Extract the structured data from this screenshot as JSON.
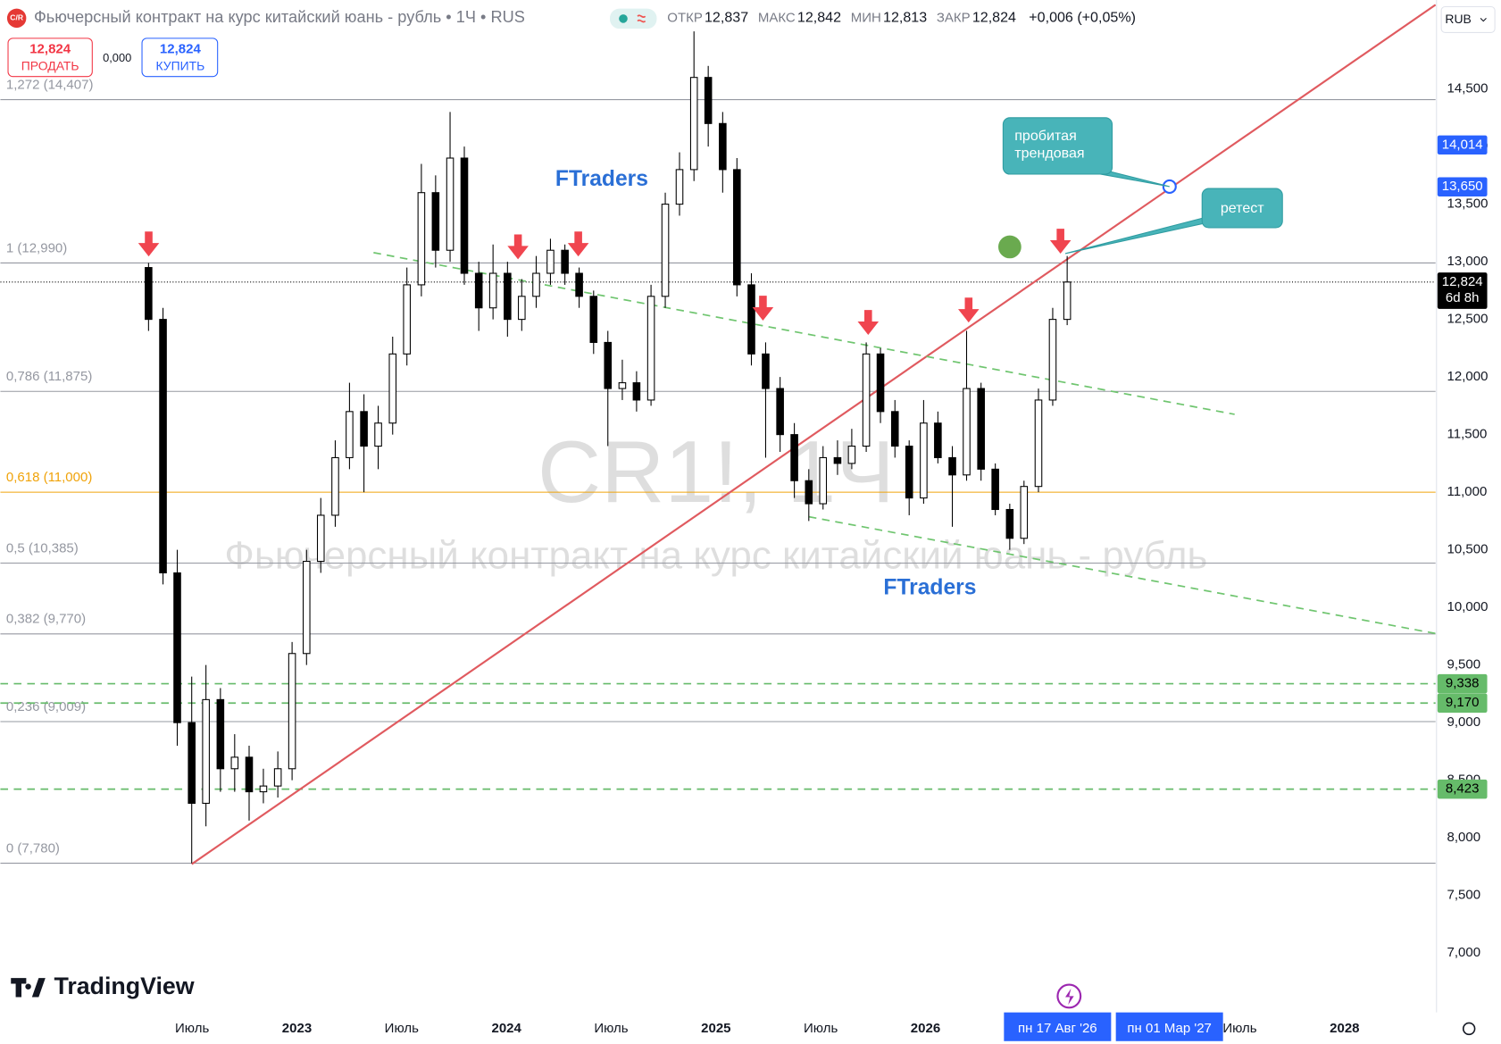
{
  "chart_data": {
    "type": "candlestick",
    "title": "Фьючерсный контракт на курс китайский юань - рубль • 1Ч • RUS",
    "symbol_icon": "C/R",
    "ohlc_legend": [
      {
        "key": "ОТКР",
        "value": "12,837"
      },
      {
        "key": "МАКС",
        "value": "12,842"
      },
      {
        "key": "МИН",
        "value": "12,813"
      },
      {
        "key": "ЗАКР",
        "value": "12,824"
      }
    ],
    "change": "+0,006 (+0,05%)",
    "sell": {
      "price": "12,824",
      "label": "ПРОДАТЬ"
    },
    "spread": "0,000",
    "buy": {
      "price": "12,824",
      "label": "КУПИТЬ"
    },
    "currency": "RUB",
    "watermark": {
      "symbol": "CR1!, 1Ч",
      "description": "Фьючерсный контракт на курс китайский юань - рубль"
    },
    "annotations": {
      "brand_top": "FTraders",
      "brand_bottom": "FTraders",
      "broken_trend": "пробитая трендовая",
      "retest": "ретест"
    },
    "logo": "TradingView",
    "xlim": [
      2021.585,
      2028.434
    ],
    "ylim": [
      6.485,
      15.272
    ],
    "grid": false,
    "up_color": "#ffffff",
    "down_color": "#000000",
    "xticks": [
      {
        "value": 2022.5,
        "label": "Июль"
      },
      2023,
      {
        "value": 2023.5,
        "label": "Июль"
      },
      2024,
      {
        "value": 2024.5,
        "label": "Июль"
      },
      2025,
      {
        "value": 2025.5,
        "label": "Июль"
      },
      2026,
      {
        "value": 2027.5,
        "label": "Июль"
      },
      2028
    ],
    "yticks": [
      {
        "value": 7,
        "label": "7,000"
      },
      {
        "value": 7.5,
        "label": "7,500"
      },
      {
        "value": 8,
        "label": "8,000"
      },
      {
        "value": 8.5,
        "label": "8,500"
      },
      {
        "value": 9,
        "label": "9,000"
      },
      {
        "value": 9.5,
        "label": "9,500"
      },
      {
        "value": 10,
        "label": "10,000"
      },
      {
        "value": 10.5,
        "label": "10,500"
      },
      {
        "value": 11,
        "label": "11,000"
      },
      {
        "value": 11.5,
        "label": "11,500"
      },
      {
        "value": 12,
        "label": "12,000"
      },
      {
        "value": 12.5,
        "label": "12,500"
      },
      {
        "value": 13,
        "label": "13,000"
      },
      {
        "value": 13.5,
        "label": "13,500"
      },
      {
        "value": 14,
        "label": "14,000"
      },
      {
        "value": 14.5,
        "label": "14,500"
      }
    ],
    "fib_levels": [
      {
        "value": 14.407,
        "label": "1,272 (14,407)",
        "color": "#9598a1"
      },
      {
        "value": 12.99,
        "label": "1 (12,990)",
        "color": "#9598a1"
      },
      {
        "value": 11.875,
        "label": "0,786 (11,875)",
        "color": "#9598a1"
      },
      {
        "value": 11,
        "label": "0,618 (11,000)",
        "color": "#f0a30a"
      },
      {
        "value": 10.385,
        "label": "0,5 (10,385)",
        "color": "#9598a1"
      },
      {
        "value": 9.77,
        "label": "0,382 (9,770)",
        "color": "#9598a1"
      },
      {
        "value": 9.009,
        "label": "0,236 (9,009)",
        "color": "#9598a1"
      },
      {
        "value": 7.78,
        "label": "0 (7,780)",
        "color": "#9598a1"
      }
    ],
    "price_tags": [
      {
        "value": 14.014,
        "label": "14,014",
        "color": "#2962ff",
        "text_color": "#ffffff"
      },
      {
        "value": 13.65,
        "label": "13,650",
        "color": "#2962ff",
        "text_color": "#ffffff"
      },
      {
        "value": 12.824,
        "label": "12,824",
        "sublabel": "6d 8h",
        "color": "#000000",
        "text_color": "#ffffff",
        "line": "dotted"
      },
      {
        "value": 9.338,
        "label": "9,338",
        "color": "#66bb6a",
        "text_color": "#000000",
        "line": "dashed"
      },
      {
        "value": 9.17,
        "label": "9,170",
        "color": "#66bb6a",
        "text_color": "#000000",
        "line": "dashed"
      },
      {
        "value": 8.423,
        "label": "8,423",
        "color": "#66bb6a",
        "text_color": "#000000",
        "line": "dashed"
      }
    ],
    "date_tags": [
      {
        "value": 2026.63,
        "label": "пн 17 Авг '26"
      },
      {
        "value": 2027.164,
        "label": "пн 01 Мар '27"
      }
    ],
    "candles": {
      "x": [
        2022.292,
        2022.361,
        2022.429,
        2022.498,
        2022.566,
        2022.635,
        2022.703,
        2022.772,
        2022.84,
        2022.909,
        2022.977,
        2023.046,
        2023.114,
        2023.183,
        2023.251,
        2023.32,
        2023.388,
        2023.457,
        2023.525,
        2023.594,
        2023.662,
        2023.731,
        2023.799,
        2023.868,
        2023.936,
        2024.005,
        2024.073,
        2024.142,
        2024.21,
        2024.279,
        2024.347,
        2024.416,
        2024.484,
        2024.553,
        2024.621,
        2024.69,
        2024.758,
        2024.826,
        2024.895,
        2024.963,
        2025.032,
        2025.1,
        2025.169,
        2025.237,
        2025.306,
        2025.374,
        2025.443,
        2025.511,
        2025.58,
        2025.648,
        2025.717,
        2025.785,
        2025.854,
        2025.922,
        2025.991,
        2026.059,
        2026.128,
        2026.196,
        2026.265,
        2026.333,
        2026.402,
        2026.47,
        2026.539,
        2026.607,
        2026.676
      ],
      "open": [
        12.95,
        12.5,
        10.3,
        9,
        8.3,
        9.2,
        8.6,
        8.7,
        8.4,
        8.45,
        8.6,
        9.6,
        10.4,
        10.8,
        11.3,
        11.7,
        11.4,
        11.6,
        12.2,
        12.8,
        13.6,
        13.1,
        13.9,
        12.9,
        12.6,
        12.9,
        12.5,
        12.7,
        12.9,
        13.1,
        12.9,
        12.7,
        12.3,
        11.9,
        11.95,
        11.8,
        12.7,
        13.5,
        13.8,
        14.6,
        14.2,
        13.8,
        12.8,
        12.2,
        11.9,
        11.5,
        11.1,
        10.9,
        11.3,
        11.25,
        11.4,
        12.2,
        11.7,
        11.4,
        10.95,
        11.6,
        11.3,
        11.15,
        11.9,
        11.2,
        10.85,
        10.6,
        11.05,
        11.8,
        12.5
      ],
      "high": [
        12.99,
        12.6,
        10.5,
        9.4,
        9.5,
        9.3,
        8.9,
        8.8,
        8.6,
        8.75,
        9.7,
        10.5,
        10.95,
        11.45,
        11.95,
        11.85,
        11.75,
        12.35,
        12.95,
        13.85,
        13.75,
        14.3,
        14,
        13,
        13.15,
        13,
        12.85,
        13.05,
        13.2,
        13.15,
        12.95,
        12.75,
        12.4,
        12.15,
        12.05,
        12.8,
        13.6,
        13.95,
        15,
        14.7,
        14.3,
        13.9,
        12.9,
        12.3,
        12,
        11.6,
        11.2,
        11.4,
        11.45,
        11.55,
        12.3,
        12.25,
        11.8,
        11.45,
        11.8,
        11.7,
        11.4,
        12.4,
        11.95,
        11.25,
        10.9,
        11.1,
        11.9,
        12.6,
        13.05
      ],
      "low": [
        12.4,
        10.2,
        8.8,
        7.78,
        8.1,
        8.4,
        8.4,
        8.15,
        8.3,
        8.35,
        8.5,
        9.5,
        10.3,
        10.7,
        11.2,
        11,
        11.2,
        11.5,
        12.1,
        12.7,
        12.95,
        13,
        12.8,
        12.4,
        12.5,
        12.35,
        12.4,
        12.6,
        12.8,
        12.8,
        12.6,
        12.2,
        11.4,
        11.8,
        11.7,
        11.75,
        12.6,
        13.4,
        13.7,
        14,
        13.6,
        12.7,
        12.1,
        11.3,
        11.35,
        10.95,
        10.75,
        10.85,
        11.15,
        11.2,
        11.35,
        11.6,
        11.3,
        10.8,
        10.9,
        11.25,
        10.7,
        11.1,
        11.1,
        10.8,
        10.5,
        10.55,
        11,
        11.75,
        12.45
      ],
      "close": [
        12.5,
        10.3,
        9,
        8.3,
        9.2,
        8.6,
        8.7,
        8.4,
        8.45,
        8.6,
        9.6,
        10.4,
        10.8,
        11.3,
        11.7,
        11.4,
        11.6,
        12.2,
        12.8,
        13.6,
        13.1,
        13.9,
        12.9,
        12.6,
        12.9,
        12.5,
        12.7,
        12.9,
        13.1,
        12.9,
        12.7,
        12.3,
        11.9,
        11.95,
        11.8,
        12.7,
        13.5,
        13.8,
        14.6,
        14.2,
        13.8,
        12.8,
        12.2,
        11.9,
        11.5,
        11.1,
        10.9,
        11.3,
        11.25,
        11.4,
        12.2,
        11.7,
        11.4,
        10.95,
        11.6,
        11.3,
        11.15,
        11.9,
        11.2,
        10.85,
        10.6,
        11.05,
        11.8,
        12.5,
        12.824
      ]
    }
  }
}
